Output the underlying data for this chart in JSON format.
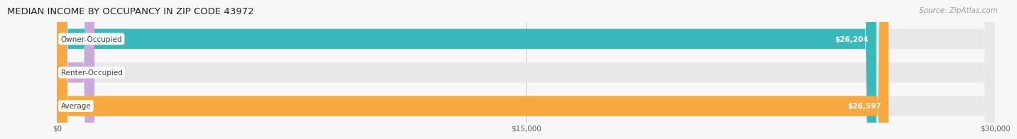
{
  "title": "MEDIAN INCOME BY OCCUPANCY IN ZIP CODE 43972",
  "source": "Source: ZipAtlas.com",
  "categories": [
    "Owner-Occupied",
    "Renter-Occupied",
    "Average"
  ],
  "values": [
    26204,
    0,
    26597
  ],
  "bar_colors": [
    "#3ab8ba",
    "#c9aad8",
    "#f5a93f"
  ],
  "bar_bg_color": "#e8e8e8",
  "xlim": [
    0,
    30000
  ],
  "xticks": [
    0,
    15000,
    30000
  ],
  "xtick_labels": [
    "$0",
    "$15,000",
    "$30,000"
  ],
  "title_fontsize": 9.5,
  "source_fontsize": 7.5,
  "bar_height": 0.6,
  "figsize": [
    14.06,
    1.96
  ],
  "dpi": 100,
  "background_color": "#f7f7f7",
  "title_color": "#222222",
  "source_color": "#999999",
  "grid_color": "#cccccc",
  "renter_small_bar_width": 1200,
  "label_pill_color": "#ffffff",
  "label_text_color": "#444444",
  "value_text_color": "#ffffff",
  "value_text_outside_color": "#555555"
}
